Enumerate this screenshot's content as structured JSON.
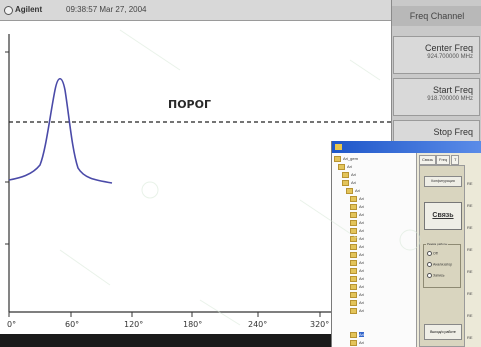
{
  "titlebar": {
    "brand": "Agilent",
    "timestamp": "09:38:57  Mar 27, 2004"
  },
  "trace": {
    "threshold_label": "ПОРОГ",
    "x_ticks": [
      "0°",
      "60°",
      "120°",
      "180°",
      "240°",
      "320°"
    ],
    "colors": {
      "trace": "#4a4aa8",
      "axes": "#333333",
      "threshold": "#222222"
    }
  },
  "softkeys": {
    "menu_title": "Freq Channel",
    "items": [
      {
        "label": "Center Freq",
        "value": "924.700000 MHz"
      },
      {
        "label": "Start Freq",
        "value": "918.700000 MHz"
      },
      {
        "label": "Stop Freq",
        "value": ""
      }
    ]
  },
  "explorer": {
    "tabs": [
      "Связь",
      "Freq",
      "Т"
    ],
    "tree_items": [
      "Ari_gem",
      "Ari",
      "Ari",
      "Ari",
      "Ari",
      "Ari",
      "Ari",
      "Ari",
      "Ari",
      "Ari",
      "Ari",
      "Ari",
      "Ari",
      "Ari",
      "Ari",
      "Ari",
      "Ari",
      "Ari",
      "Ari",
      "Ari",
      "Ari",
      "Ari"
    ],
    "connect_button": "Связь",
    "top_button": "Конфигурация",
    "radio_group_label": "Режим работы",
    "radio_options": [
      "Off",
      "Анализатор",
      "Запись"
    ],
    "bottom_button": "Выход/о работе",
    "column_marks": [
      "RE",
      "RE",
      "RE",
      "RE",
      "RE",
      "RE",
      "RE",
      "RE"
    ]
  }
}
